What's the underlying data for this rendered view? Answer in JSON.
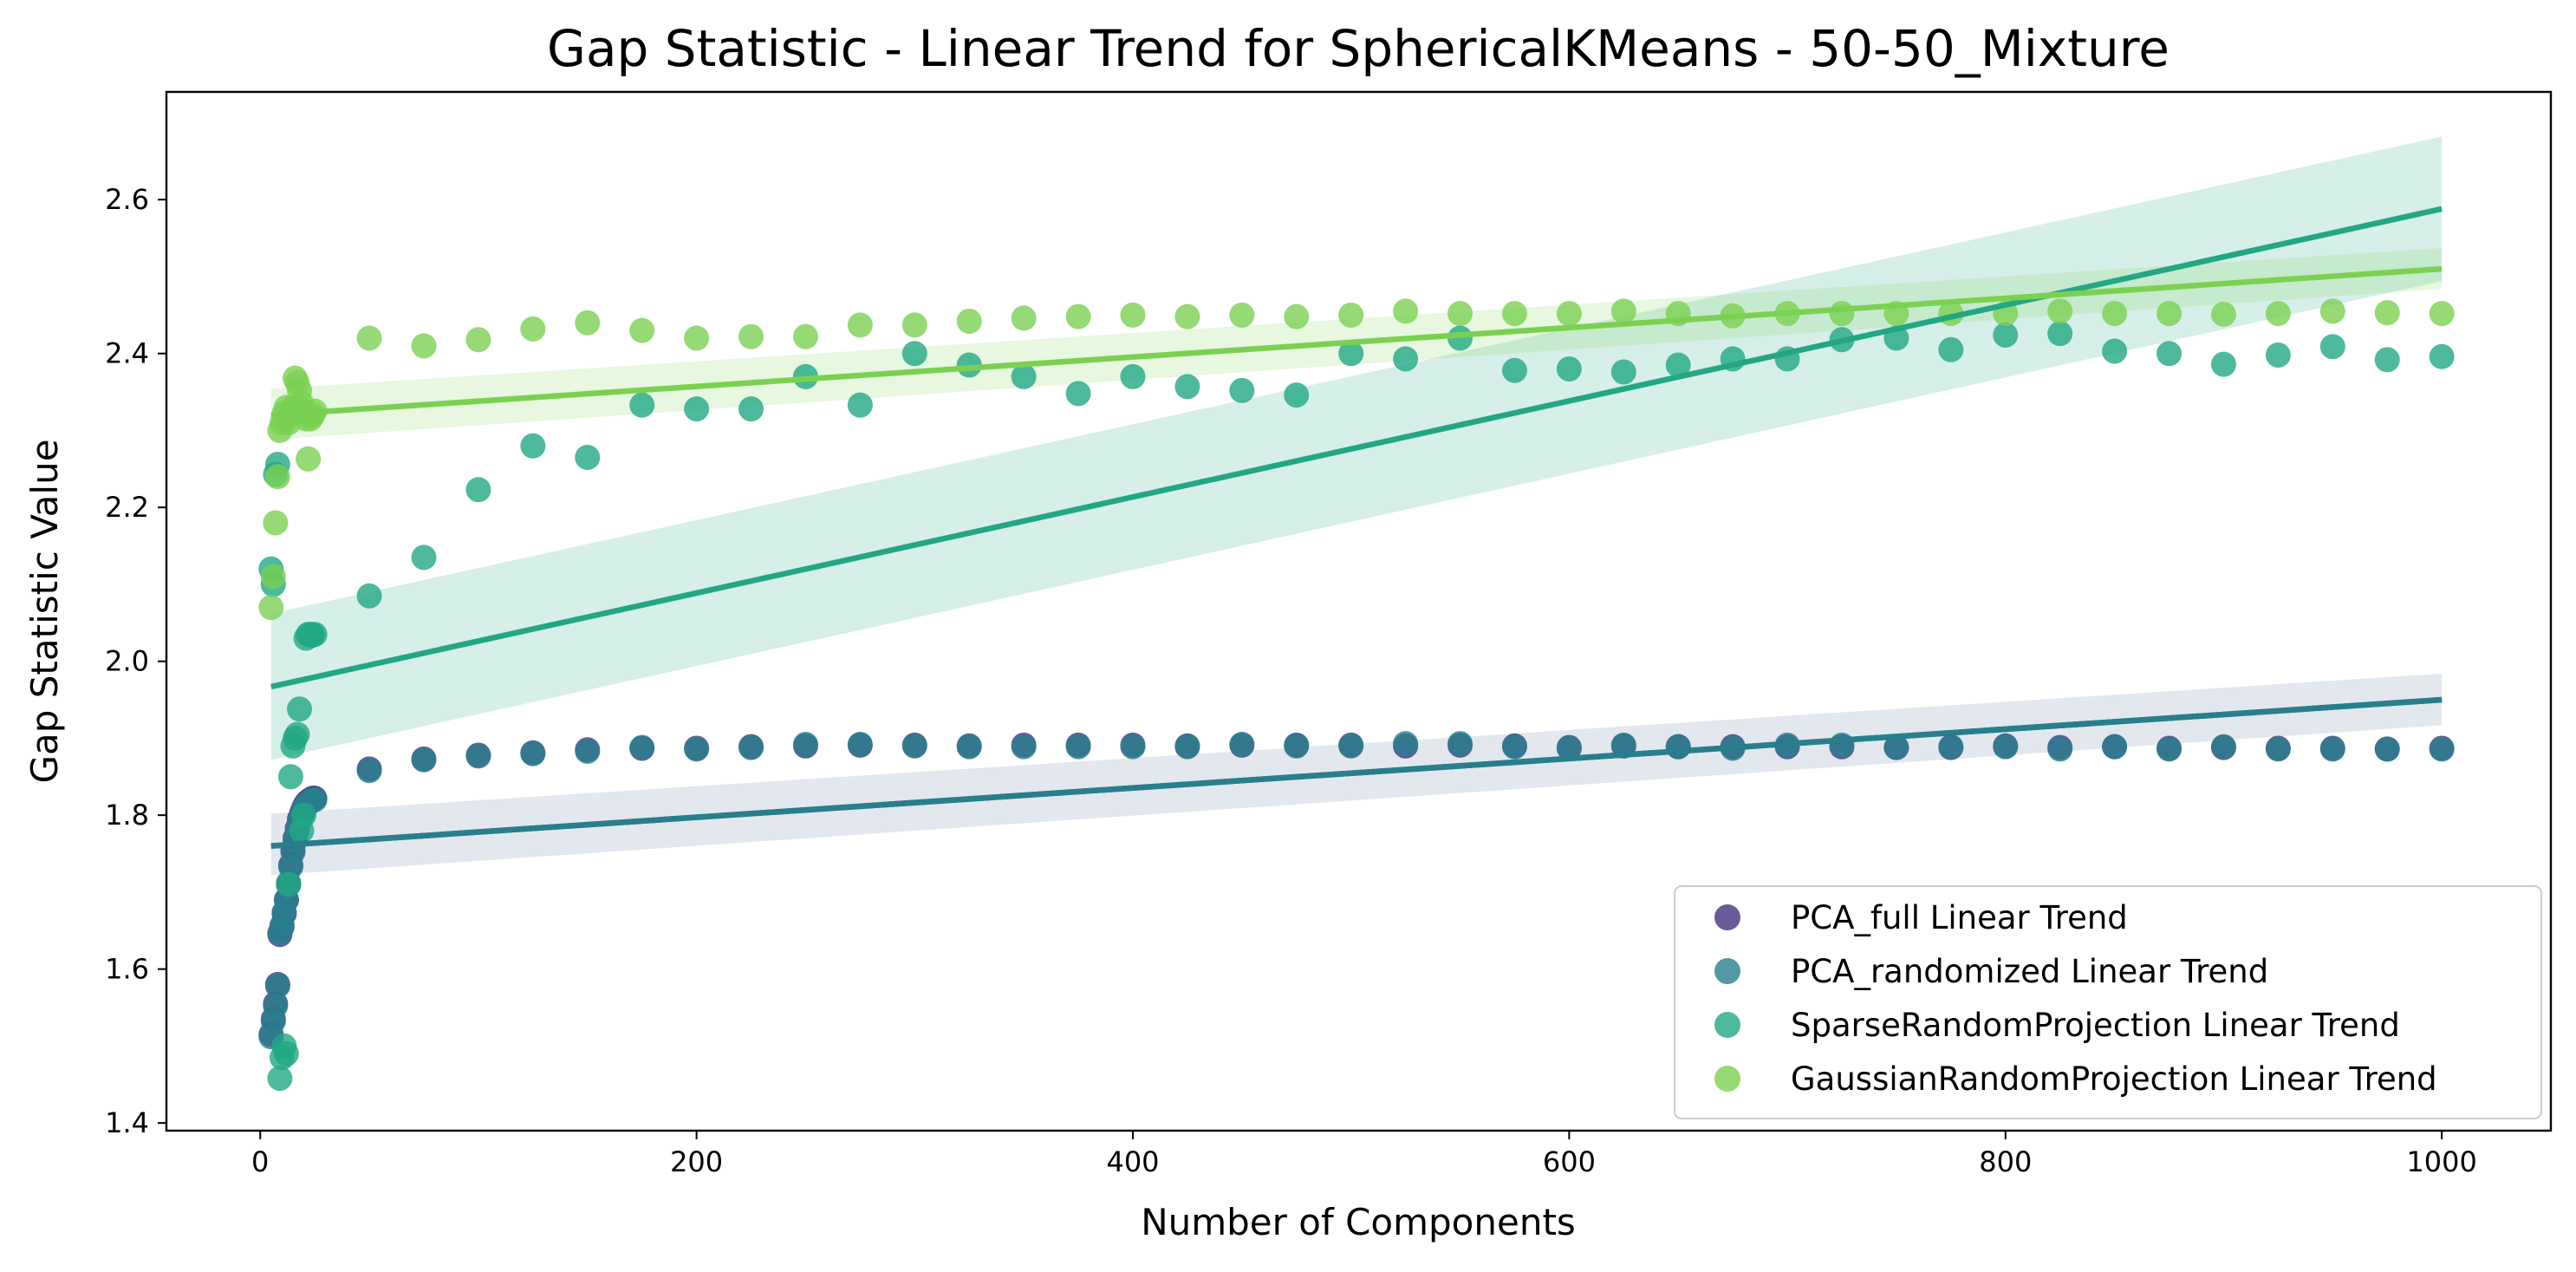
{
  "chart_data": {
    "type": "scatter",
    "title": "Gap Statistic - Linear Trend for SphericalKMeans - 50-50_Mixture",
    "xlabel": "Number of Components",
    "ylabel": "Gap Statistic Value",
    "xlim": [
      -43,
      1050
    ],
    "ylim": [
      1.39,
      2.74
    ],
    "xticks": [
      0,
      200,
      400,
      600,
      800,
      1000
    ],
    "yticks": [
      1.4,
      1.6,
      1.8,
      2.0,
      2.2,
      2.4,
      2.6
    ],
    "ytick_labels": [
      "1.4",
      "1.6",
      "1.8",
      "2.0",
      "2.2",
      "2.4",
      "2.6"
    ],
    "legend_position": "lower right",
    "grid": false,
    "series": [
      {
        "name": "PCA_full Linear Trend",
        "color": "#46327e",
        "x": [
          5,
          6,
          7,
          8,
          9,
          10,
          11,
          12,
          13,
          14,
          15,
          16,
          17,
          18,
          19,
          20,
          21,
          22,
          23,
          24,
          25,
          50,
          75,
          100,
          125,
          150,
          175,
          200,
          225,
          250,
          275,
          300,
          325,
          350,
          375,
          400,
          425,
          450,
          475,
          500,
          525,
          550,
          575,
          600,
          625,
          650,
          675,
          700,
          725,
          750,
          775,
          800,
          825,
          850,
          875,
          900,
          925,
          950,
          975,
          1000
        ],
        "y": [
          1.515,
          1.535,
          1.555,
          1.58,
          1.645,
          1.655,
          1.672,
          1.69,
          1.71,
          1.735,
          1.755,
          1.77,
          1.783,
          1.795,
          1.803,
          1.81,
          1.815,
          1.818,
          1.82,
          1.822,
          1.822,
          1.86,
          1.873,
          1.878,
          1.881,
          1.885,
          1.887,
          1.887,
          1.889,
          1.89,
          1.891,
          1.891,
          1.89,
          1.891,
          1.891,
          1.891,
          1.89,
          1.891,
          1.891,
          1.891,
          1.89,
          1.891,
          1.89,
          1.888,
          1.89,
          1.889,
          1.889,
          1.889,
          1.889,
          1.888,
          1.888,
          1.89,
          1.888,
          1.889,
          1.887,
          1.888,
          1.887,
          1.887,
          1.886,
          1.887
        ],
        "trend": [
          1.76,
          1.95
        ]
      },
      {
        "name": "PCA_randomized Linear Trend",
        "color": "#277f8e",
        "x": [
          5,
          6,
          7,
          8,
          9,
          10,
          11,
          12,
          13,
          14,
          15,
          16,
          17,
          18,
          19,
          20,
          21,
          22,
          23,
          24,
          25,
          50,
          75,
          100,
          125,
          150,
          175,
          200,
          225,
          250,
          275,
          300,
          325,
          350,
          375,
          400,
          425,
          450,
          475,
          500,
          525,
          550,
          575,
          600,
          625,
          650,
          675,
          700,
          725,
          750,
          775,
          800,
          825,
          850,
          875,
          900,
          925,
          950,
          975,
          1000
        ],
        "y": [
          1.512,
          1.532,
          1.552,
          1.578,
          1.647,
          1.657,
          1.674,
          1.69,
          1.712,
          1.733,
          1.752,
          1.768,
          1.78,
          1.792,
          1.8,
          1.808,
          1.812,
          1.816,
          1.818,
          1.82,
          1.82,
          1.858,
          1.872,
          1.877,
          1.88,
          1.883,
          1.888,
          1.886,
          1.888,
          1.892,
          1.892,
          1.89,
          1.889,
          1.889,
          1.889,
          1.889,
          1.889,
          1.892,
          1.89,
          1.89,
          1.893,
          1.893,
          1.889,
          1.887,
          1.891,
          1.889,
          1.887,
          1.891,
          1.891,
          1.888,
          1.889,
          1.889,
          1.886,
          1.889,
          1.886,
          1.889,
          1.886,
          1.886,
          1.886,
          1.886
        ],
        "trend": [
          1.76,
          1.95
        ]
      },
      {
        "name": "SparseRandomProjection Linear Trend",
        "color": "#22a784",
        "x": [
          5,
          6,
          7,
          8,
          9,
          10,
          11,
          12,
          13,
          14,
          15,
          16,
          17,
          18,
          19,
          20,
          21,
          22,
          23,
          24,
          25,
          50,
          75,
          100,
          125,
          150,
          175,
          200,
          225,
          250,
          275,
          300,
          325,
          350,
          375,
          400,
          425,
          450,
          475,
          500,
          525,
          550,
          575,
          600,
          625,
          650,
          675,
          700,
          725,
          750,
          775,
          800,
          825,
          850,
          875,
          900,
          925,
          950,
          975,
          1000
        ],
        "y": [
          2.12,
          2.1,
          2.243,
          2.256,
          1.458,
          1.485,
          1.5,
          1.49,
          1.71,
          1.85,
          1.89,
          1.9,
          1.905,
          1.938,
          1.78,
          1.8,
          2.03,
          2.035,
          2.035,
          2.034,
          2.035,
          2.085,
          2.135,
          2.223,
          2.28,
          2.265,
          2.333,
          2.328,
          2.328,
          2.37,
          2.333,
          2.4,
          2.385,
          2.37,
          2.348,
          2.37,
          2.357,
          2.352,
          2.346,
          2.4,
          2.393,
          2.42,
          2.378,
          2.38,
          2.376,
          2.385,
          2.393,
          2.393,
          2.418,
          2.42,
          2.405,
          2.424,
          2.426,
          2.403,
          2.4,
          2.386,
          2.398,
          2.409,
          2.392,
          2.396
        ],
        "trend": [
          1.967,
          2.588
        ]
      },
      {
        "name": "GaussianRandomProjection Linear Trend",
        "color": "#7ad151",
        "x": [
          5,
          6,
          7,
          8,
          9,
          10,
          11,
          12,
          13,
          14,
          15,
          16,
          17,
          18,
          19,
          20,
          21,
          22,
          23,
          24,
          25,
          50,
          75,
          100,
          125,
          150,
          175,
          200,
          225,
          250,
          275,
          300,
          325,
          350,
          375,
          400,
          425,
          450,
          475,
          500,
          525,
          550,
          575,
          600,
          625,
          650,
          675,
          700,
          725,
          750,
          775,
          800,
          825,
          850,
          875,
          900,
          925,
          950,
          975,
          1000
        ],
        "y": [
          2.07,
          2.11,
          2.18,
          2.24,
          2.3,
          2.31,
          2.322,
          2.33,
          2.31,
          2.32,
          2.33,
          2.368,
          2.362,
          2.352,
          2.335,
          2.325,
          2.315,
          2.263,
          2.315,
          2.32,
          2.325,
          2.42,
          2.41,
          2.418,
          2.432,
          2.44,
          2.43,
          2.42,
          2.422,
          2.422,
          2.437,
          2.437,
          2.442,
          2.446,
          2.448,
          2.45,
          2.448,
          2.45,
          2.448,
          2.45,
          2.455,
          2.452,
          2.452,
          2.452,
          2.455,
          2.452,
          2.449,
          2.452,
          2.452,
          2.452,
          2.452,
          2.452,
          2.455,
          2.452,
          2.452,
          2.451,
          2.452,
          2.455,
          2.453,
          2.452
        ],
        "trend": [
          2.32,
          2.51
        ]
      }
    ],
    "confidence_bands": [
      {
        "series": "PCA_randomized Linear Trend",
        "color": "#5d7ea3",
        "lower": [
          1.722,
          1.917
        ],
        "upper": [
          1.802,
          1.984
        ]
      },
      {
        "series": "SparseRandomProjection Linear Trend",
        "color": "#22a784",
        "lower": [
          1.872,
          2.494
        ],
        "upper": [
          2.062,
          2.682
        ]
      },
      {
        "series": "GaussianRandomProjection Linear Trend",
        "color": "#7ad151",
        "lower": [
          2.288,
          2.484
        ],
        "upper": [
          2.354,
          2.537
        ]
      }
    ],
    "trend_x": [
      5,
      1000
    ]
  }
}
